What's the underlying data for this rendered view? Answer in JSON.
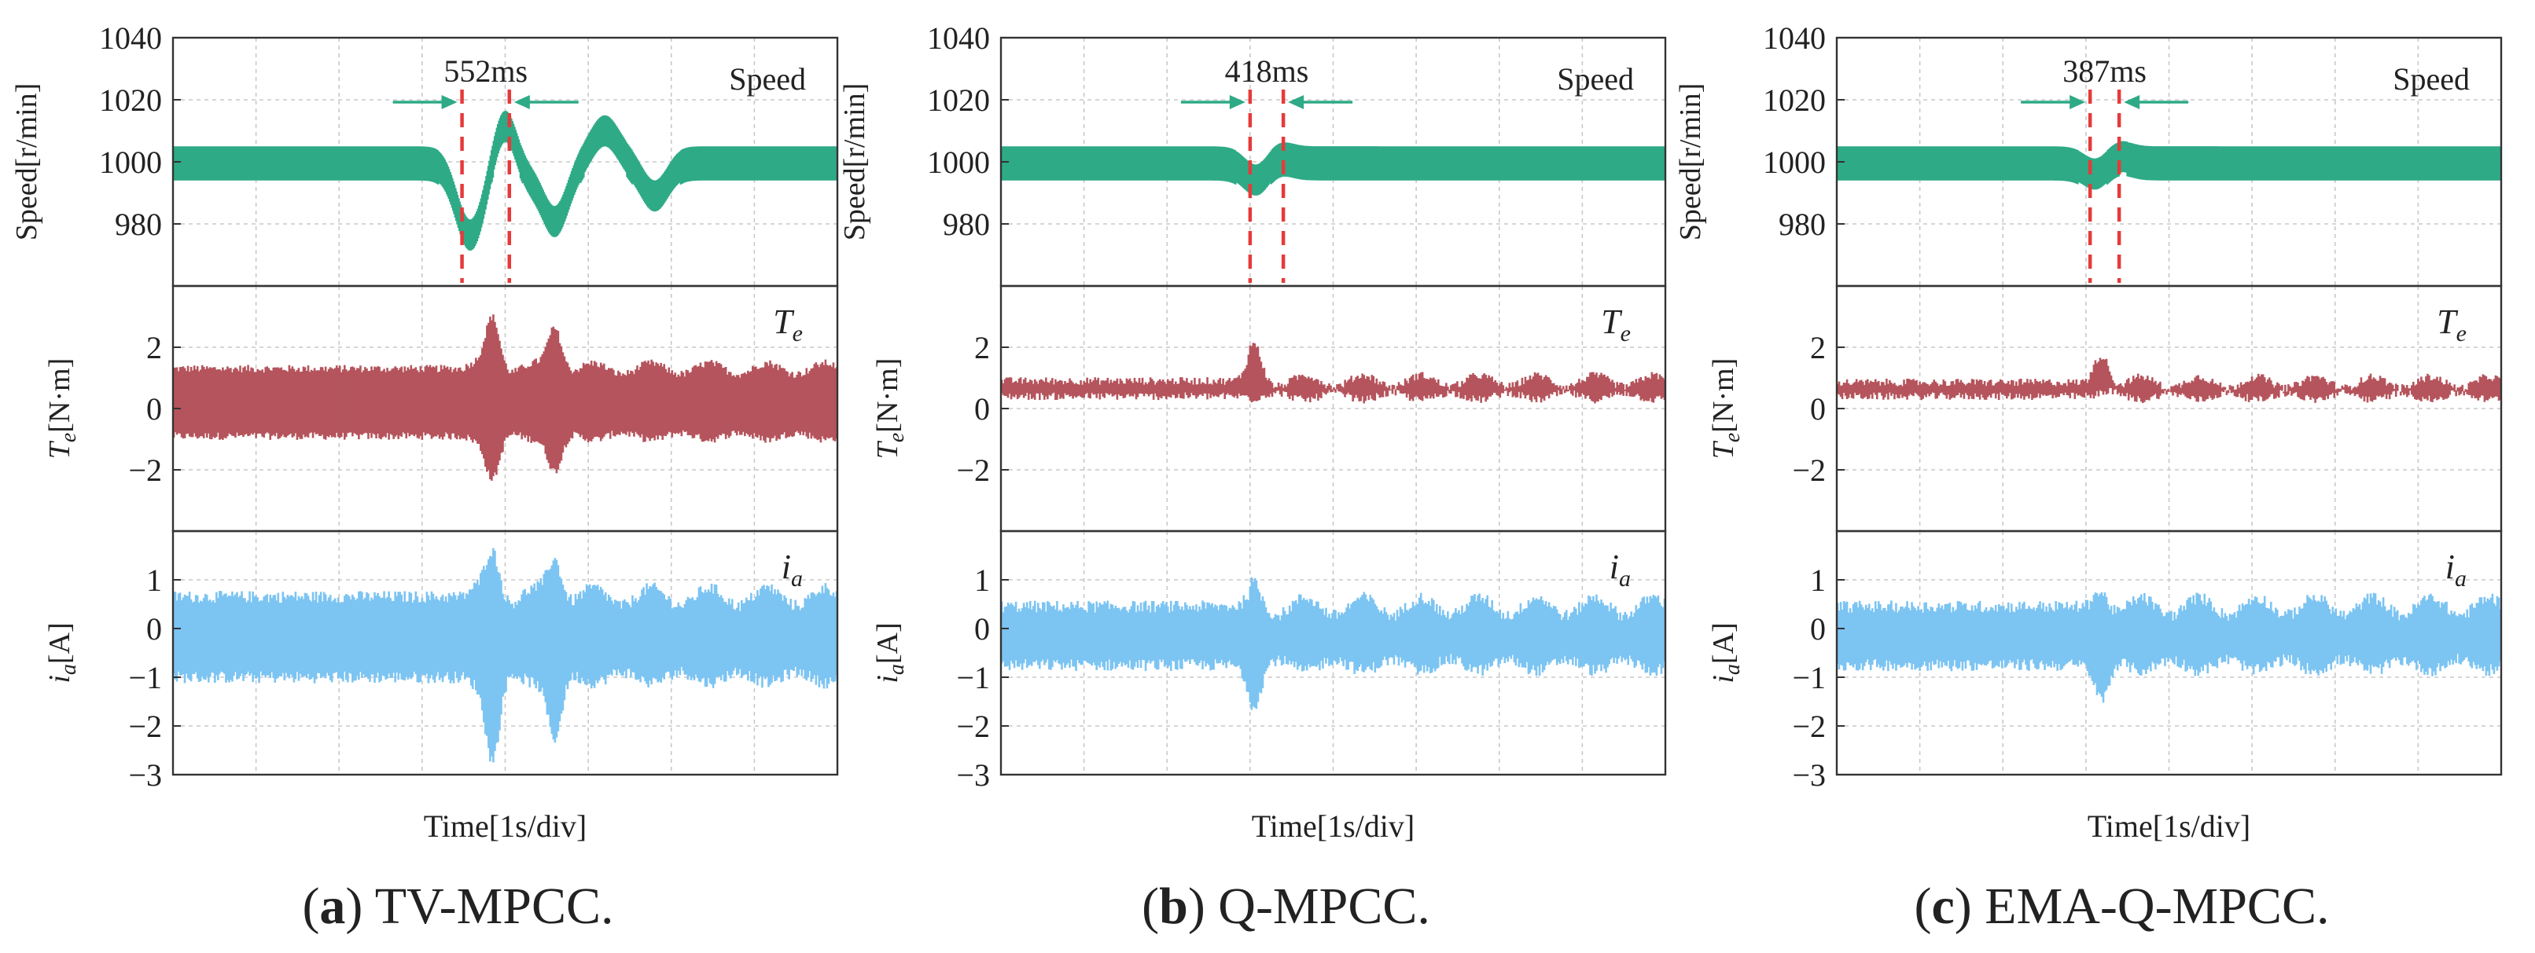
{
  "chart_data": [
    {
      "type": "line",
      "caption_label": "a",
      "caption_text": "TV-MPCC.",
      "xlabel": "Time[1s/div]",
      "x_divisions": 8,
      "transition_time_label": "552ms",
      "transition_window_div": [
        3.48,
        4.05
      ],
      "panels": [
        {
          "signal": "speed",
          "ylabel": "Speed[r/min]",
          "legend": "Speed",
          "ylim": [
            960,
            1040
          ],
          "yticks": [
            "1040",
            "1020",
            "1000",
            "980"
          ],
          "color": "#2eaa86",
          "steady_band": [
            994,
            1005
          ],
          "disturbance": [
            {
              "t": 3.55,
              "v": 980
            },
            {
              "t": 3.75,
              "v": 992
            },
            {
              "t": 4.0,
              "v": 1017
            },
            {
              "t": 4.2,
              "v": 993
            },
            {
              "t": 4.6,
              "v": 981
            },
            {
              "t": 5.2,
              "v": 1010
            },
            {
              "t": 5.8,
              "v": 989
            }
          ]
        },
        {
          "signal": "torque",
          "ylabel": "Te[N·m]",
          "legend": "Te",
          "ylim": [
            -4,
            4
          ],
          "yticks": [
            "2",
            "0",
            "-2"
          ],
          "color": "#b5545c",
          "envelope_base": [
            -0.9,
            1.3
          ],
          "bursts": [
            {
              "t": 3.85,
              "hi": 3.0,
              "lo": -2.3
            },
            {
              "t": 4.6,
              "hi": 2.7,
              "lo": -2.1
            }
          ]
        },
        {
          "signal": "current",
          "ylabel": "ia[A]",
          "legend": "ia",
          "ylim": [
            -3,
            2
          ],
          "yticks": [
            "1",
            "0",
            "-1",
            "-2",
            "-3"
          ],
          "color": "#7cc4f2",
          "envelope_base": [
            -1.0,
            0.65
          ],
          "bursts": [
            {
              "t": 3.85,
              "hi": 1.6,
              "lo": -2.7
            },
            {
              "t": 4.6,
              "hi": 1.5,
              "lo": -2.3
            }
          ]
        }
      ]
    },
    {
      "type": "line",
      "caption_label": "b",
      "caption_text": "Q-MPCC.",
      "xlabel": "Time[1s/div]",
      "x_divisions": 8,
      "transition_time_label": "418ms",
      "transition_window_div": [
        3.0,
        3.4
      ],
      "panels": [
        {
          "signal": "speed",
          "ylabel": "Speed[r/min]",
          "legend": "Speed",
          "ylim": [
            960,
            1040
          ],
          "yticks": [
            "1040",
            "1020",
            "1000",
            "980"
          ],
          "color": "#2eaa86",
          "steady_band": [
            994,
            1005
          ],
          "disturbance": [
            {
              "t": 3.1,
              "v": 993
            },
            {
              "t": 3.3,
              "v": 1003
            }
          ]
        },
        {
          "signal": "torque",
          "ylabel": "Te[N·m]",
          "legend": "Te",
          "ylim": [
            -4,
            4
          ],
          "yticks": [
            "2",
            "0",
            "-2"
          ],
          "color": "#b5545c",
          "envelope_base": [
            0.4,
            0.9
          ],
          "bursts": [
            {
              "t": 3.05,
              "hi": 2.0,
              "lo": 0.4
            }
          ]
        },
        {
          "signal": "current",
          "ylabel": "ia[A]",
          "legend": "ia",
          "ylim": [
            -3,
            2
          ],
          "yticks": [
            "1",
            "0",
            "-1",
            "-2",
            "-3"
          ],
          "color": "#7cc4f2",
          "envelope_base": [
            -0.75,
            0.45
          ],
          "bursts": [
            {
              "t": 3.05,
              "hi": 0.8,
              "lo": -1.5
            }
          ]
        }
      ]
    },
    {
      "type": "line",
      "caption_label": "c",
      "caption_text": "EMA-Q-MPCC.",
      "xlabel": "Time[1s/div]",
      "x_divisions": 8,
      "transition_time_label": "387ms",
      "transition_window_div": [
        3.05,
        3.4
      ],
      "panels": [
        {
          "signal": "speed",
          "ylabel": "Speed[r/min]",
          "legend": "Speed",
          "ylim": [
            960,
            1040
          ],
          "yticks": [
            "1040",
            "1020",
            "1000",
            "980"
          ],
          "color": "#2eaa86",
          "steady_band": [
            994,
            1005
          ],
          "disturbance": [
            {
              "t": 3.15,
              "v": 995
            },
            {
              "t": 3.35,
              "v": 1003
            }
          ]
        },
        {
          "signal": "torque",
          "ylabel": "Te[N·m]",
          "legend": "Te",
          "ylim": [
            -4,
            4
          ],
          "yticks": [
            "2",
            "0",
            "-2"
          ],
          "color": "#b5545c",
          "envelope_base": [
            0.4,
            0.85
          ],
          "bursts": [
            {
              "t": 3.2,
              "hi": 1.8,
              "lo": 0.5
            }
          ]
        },
        {
          "signal": "current",
          "ylabel": "ia[A]",
          "legend": "ia",
          "ylim": [
            -3,
            2
          ],
          "yticks": [
            "1",
            "0",
            "-1",
            "-2",
            "-3"
          ],
          "color": "#7cc4f2",
          "envelope_base": [
            -0.75,
            0.45
          ],
          "bursts": [
            {
              "t": 3.2,
              "hi": 0.8,
              "lo": -1.5
            }
          ]
        }
      ]
    }
  ]
}
